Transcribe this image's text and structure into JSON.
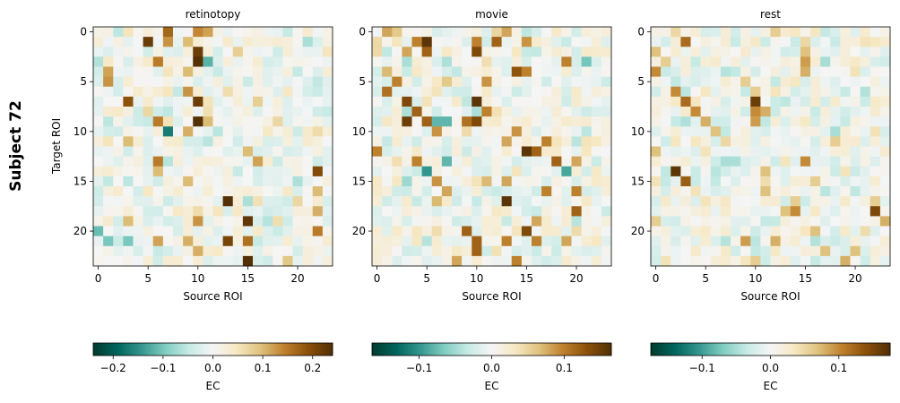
{
  "chart_data": {
    "type": "heatmap",
    "figure_label": "Subject 72",
    "colormap": "BrBG_r",
    "color_stops": [
      "#003c30",
      "#01665e",
      "#35978f",
      "#80cdc1",
      "#c7eae5",
      "#f5f5f5",
      "#f6e8c3",
      "#dfc27d",
      "#bf812d",
      "#8c510a",
      "#543005"
    ],
    "n_rois": 24,
    "ylabel": "Target ROI",
    "xlabel": "Source ROI",
    "x_ticks": [
      0,
      5,
      10,
      15,
      20
    ],
    "y_ticks": [
      0,
      5,
      10,
      15,
      20
    ],
    "panels": [
      {
        "title": "retinotopy",
        "vmin": -0.24,
        "vmax": 0.24,
        "colorbar_label": "EC",
        "colorbar_ticks": [
          -0.2,
          -0.1,
          0.0,
          0.1,
          0.2
        ],
        "colorbar_tick_labels": [
          "−0.2",
          "−0.1",
          "0.0",
          "0.1",
          "0.2"
        ],
        "strong": [
          [
            0,
            7,
            0.17
          ],
          [
            0,
            10,
            0.14
          ],
          [
            0,
            11,
            0.12
          ],
          [
            1,
            5,
            0.22
          ],
          [
            1,
            7,
            0.13
          ],
          [
            1,
            9,
            0.1
          ],
          [
            2,
            10,
            0.22
          ],
          [
            2,
            14,
            0.08
          ],
          [
            3,
            6,
            0.15
          ],
          [
            3,
            10,
            0.24
          ],
          [
            3,
            11,
            -0.12
          ],
          [
            4,
            1,
            0.12
          ],
          [
            4,
            9,
            0.1
          ],
          [
            5,
            1,
            0.13
          ],
          [
            6,
            9,
            0.13
          ],
          [
            7,
            3,
            0.19
          ],
          [
            7,
            10,
            0.22
          ],
          [
            7,
            16,
            0.08
          ],
          [
            8,
            5,
            0.07
          ],
          [
            8,
            11,
            0.06
          ],
          [
            9,
            6,
            0.15
          ],
          [
            9,
            10,
            0.24
          ],
          [
            9,
            11,
            0.1
          ],
          [
            9,
            18,
            0.07
          ],
          [
            10,
            7,
            -0.17
          ],
          [
            10,
            9,
            0.11
          ],
          [
            11,
            3,
            0.1
          ],
          [
            12,
            15,
            0.1
          ],
          [
            13,
            6,
            0.15
          ],
          [
            13,
            16,
            0.12
          ],
          [
            14,
            6,
            0.1
          ],
          [
            14,
            22,
            0.2
          ],
          [
            15,
            9,
            0.1
          ],
          [
            16,
            22,
            0.1
          ],
          [
            17,
            13,
            0.24
          ],
          [
            17,
            20,
            0.07
          ],
          [
            18,
            22,
            0.11
          ],
          [
            19,
            3,
            0.1
          ],
          [
            19,
            10,
            0.13
          ],
          [
            19,
            15,
            0.23
          ],
          [
            20,
            0,
            -0.11
          ],
          [
            20,
            22,
            0.15
          ],
          [
            21,
            1,
            -0.1
          ],
          [
            21,
            3,
            -0.1
          ],
          [
            21,
            6,
            0.12
          ],
          [
            21,
            9,
            0.11
          ],
          [
            21,
            13,
            0.21
          ],
          [
            21,
            15,
            0.16
          ],
          [
            22,
            10,
            0.11
          ],
          [
            23,
            15,
            0.24
          ],
          [
            23,
            19,
            0.09
          ]
        ],
        "seed": 7
      },
      {
        "title": "movie",
        "vmin": -0.165,
        "vmax": 0.165,
        "colorbar_label": "EC",
        "colorbar_ticks": [
          -0.1,
          0.0,
          0.1
        ],
        "colorbar_tick_labels": [
          "−0.1",
          "0.0",
          "0.1"
        ],
        "strong": [
          [
            0,
            1,
            0.08
          ],
          [
            0,
            2,
            0.06
          ],
          [
            0,
            12,
            0.05
          ],
          [
            0,
            13,
            0.08
          ],
          [
            1,
            4,
            0.1
          ],
          [
            1,
            5,
            0.16
          ],
          [
            1,
            10,
            0.1
          ],
          [
            1,
            12,
            0.12
          ],
          [
            1,
            15,
            0.09
          ],
          [
            2,
            3,
            0.08
          ],
          [
            2,
            5,
            0.12
          ],
          [
            2,
            10,
            0.14
          ],
          [
            3,
            19,
            0.1
          ],
          [
            3,
            21,
            -0.07
          ],
          [
            4,
            1,
            0.07
          ],
          [
            4,
            14,
            0.13
          ],
          [
            4,
            15,
            0.1
          ],
          [
            5,
            2,
            0.1
          ],
          [
            5,
            7,
            0.06
          ],
          [
            5,
            11,
            0.09
          ],
          [
            6,
            1,
            0.11
          ],
          [
            7,
            10,
            0.16
          ],
          [
            7,
            3,
            0.14
          ],
          [
            8,
            4,
            0.12
          ],
          [
            8,
            11,
            0.1
          ],
          [
            9,
            3,
            0.15
          ],
          [
            9,
            5,
            0.12
          ],
          [
            9,
            6,
            -0.08
          ],
          [
            9,
            7,
            -0.08
          ],
          [
            9,
            9,
            0.11
          ],
          [
            9,
            10,
            0.14
          ],
          [
            10,
            6,
            0.09
          ],
          [
            10,
            14,
            0.09
          ],
          [
            11,
            13,
            0.08
          ],
          [
            11,
            17,
            0.1
          ],
          [
            12,
            0,
            0.1
          ],
          [
            12,
            15,
            0.16
          ],
          [
            12,
            16,
            0.12
          ],
          [
            13,
            4,
            0.1
          ],
          [
            13,
            7,
            -0.08
          ],
          [
            13,
            18,
            0.12
          ],
          [
            13,
            20,
            0.08
          ],
          [
            14,
            5,
            -0.1
          ],
          [
            14,
            19,
            -0.09
          ],
          [
            15,
            6,
            0.09
          ],
          [
            15,
            11,
            0.07
          ],
          [
            15,
            13,
            0.08
          ],
          [
            16,
            7,
            0.08
          ],
          [
            16,
            17,
            0.1
          ],
          [
            16,
            20,
            0.1
          ],
          [
            17,
            13,
            0.16
          ],
          [
            17,
            6,
            0.07
          ],
          [
            18,
            20,
            0.12
          ],
          [
            19,
            16,
            0.08
          ],
          [
            20,
            9,
            0.12
          ],
          [
            20,
            15,
            0.14
          ],
          [
            21,
            10,
            0.12
          ],
          [
            21,
            13,
            0.1
          ],
          [
            21,
            16,
            0.1
          ],
          [
            21,
            19,
            0.08
          ],
          [
            22,
            10,
            0.12
          ],
          [
            23,
            8,
            0.08
          ],
          [
            23,
            14,
            0.1
          ]
        ],
        "seed": 13
      },
      {
        "title": "rest",
        "vmin": -0.175,
        "vmax": 0.175,
        "colorbar_label": "EC",
        "colorbar_ticks": [
          -0.1,
          0.0,
          0.1
        ],
        "colorbar_tick_labels": [
          "−0.1",
          "0.0",
          "0.1"
        ],
        "strong": [
          [
            0,
            2,
            0.05
          ],
          [
            0,
            12,
            0.06
          ],
          [
            1,
            3,
            0.12
          ],
          [
            1,
            15,
            0.05
          ],
          [
            2,
            0,
            0.07
          ],
          [
            2,
            15,
            0.07
          ],
          [
            3,
            1,
            0.06
          ],
          [
            3,
            15,
            0.09
          ],
          [
            4,
            0,
            0.1
          ],
          [
            4,
            15,
            0.08
          ],
          [
            5,
            9,
            0.06
          ],
          [
            6,
            2,
            0.1
          ],
          [
            6,
            10,
            0.06
          ],
          [
            7,
            3,
            0.12
          ],
          [
            7,
            10,
            0.16
          ],
          [
            8,
            4,
            0.1
          ],
          [
            8,
            10,
            0.1
          ],
          [
            8,
            11,
            0.08
          ],
          [
            9,
            5,
            0.08
          ],
          [
            9,
            10,
            0.09
          ],
          [
            10,
            6,
            0.07
          ],
          [
            10,
            18,
            -0.05
          ],
          [
            11,
            7,
            0.05
          ],
          [
            11,
            18,
            0.06
          ],
          [
            12,
            0,
            0.07
          ],
          [
            13,
            15,
            0.1
          ],
          [
            13,
            7,
            -0.05
          ],
          [
            14,
            2,
            0.17
          ],
          [
            14,
            11,
            0.07
          ],
          [
            15,
            3,
            0.13
          ],
          [
            15,
            16,
            0.06
          ],
          [
            16,
            11,
            0.07
          ],
          [
            17,
            14,
            0.06
          ],
          [
            17,
            22,
            0.06
          ],
          [
            18,
            13,
            0.07
          ],
          [
            18,
            14,
            0.1
          ],
          [
            18,
            22,
            0.15
          ],
          [
            19,
            0,
            0.06
          ],
          [
            19,
            23,
            0.08
          ],
          [
            20,
            16,
            0.07
          ],
          [
            21,
            9,
            0.09
          ],
          [
            21,
            12,
            0.08
          ],
          [
            22,
            20,
            0.07
          ],
          [
            22,
            17,
            0.07
          ],
          [
            23,
            19,
            0.08
          ],
          [
            23,
            10,
            0.06
          ]
        ],
        "seed": 29
      }
    ]
  }
}
